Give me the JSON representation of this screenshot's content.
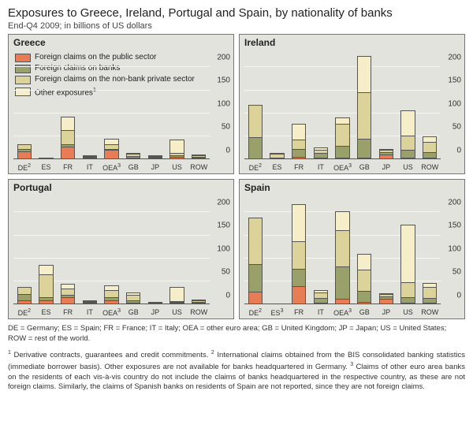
{
  "title": "Exposures to Greece, Ireland, Portugal and Spain, by nationality of banks",
  "subtitle": "End-Q4 2009; in billions of US dollars",
  "colors": {
    "public": "#e77c55",
    "banks": "#9aa06a",
    "nonbank": "#dcd39a",
    "other": "#f5eec9",
    "grid_bg": "#e3e3dd",
    "grid_line": "#f5f5f1",
    "border": "#777777"
  },
  "legend": [
    {
      "key": "public",
      "label": "Foreign claims on the public sector"
    },
    {
      "key": "banks",
      "label": "Foreign claims on banks"
    },
    {
      "key": "nonbank",
      "label": "Foreign claims on the non-bank private sector"
    },
    {
      "key": "other",
      "label": "Other exposures"
    }
  ],
  "legend_other_sup": "1",
  "axis": {
    "ymax": 240,
    "yticks": [
      0,
      50,
      100,
      150,
      200
    ],
    "tick_fontsize": 10
  },
  "categories": [
    "DE",
    "ES",
    "FR",
    "IT",
    "OEA",
    "GB",
    "JP",
    "US",
    "ROW"
  ],
  "category_sup": {
    "DE": "2",
    "OEA": "3",
    "ES_spain": "3"
  },
  "panels": [
    {
      "name": "Greece",
      "show_legend": true,
      "data": [
        {
          "public": 18,
          "banks": 5,
          "nonbank": 10,
          "other": 0
        },
        {
          "public": 1,
          "banks": 0,
          "nonbank": 0,
          "other": 0
        },
        {
          "public": 28,
          "banks": 5,
          "nonbank": 30,
          "other": 30
        },
        {
          "public": 3,
          "banks": 1,
          "nonbank": 2,
          "other": 2
        },
        {
          "public": 20,
          "banks": 3,
          "nonbank": 10,
          "other": 12
        },
        {
          "public": 3,
          "banks": 3,
          "nonbank": 5,
          "other": 3
        },
        {
          "public": 4,
          "banks": 1,
          "nonbank": 1,
          "other": 1
        },
        {
          "public": 5,
          "banks": 3,
          "nonbank": 5,
          "other": 30
        },
        {
          "public": 2,
          "banks": 1,
          "nonbank": 3,
          "other": 1
        }
      ]
    },
    {
      "name": "Ireland",
      "show_legend": false,
      "data": [
        {
          "public": 0,
          "banks": 48,
          "nonbank": 70,
          "other": 0
        },
        {
          "public": 0,
          "banks": 3,
          "nonbank": 8,
          "other": 3
        },
        {
          "public": 5,
          "banks": 18,
          "nonbank": 20,
          "other": 35
        },
        {
          "public": 2,
          "banks": 10,
          "nonbank": 8,
          "other": 5
        },
        {
          "public": 3,
          "banks": 25,
          "nonbank": 48,
          "other": 15
        },
        {
          "public": 3,
          "banks": 42,
          "nonbank": 100,
          "other": 80
        },
        {
          "public": 10,
          "banks": 5,
          "nonbank": 5,
          "other": 2
        },
        {
          "public": 2,
          "banks": 18,
          "nonbank": 30,
          "other": 55
        },
        {
          "public": 2,
          "banks": 12,
          "nonbank": 22,
          "other": 12
        }
      ]
    },
    {
      "name": "Portugal",
      "show_legend": false,
      "data": [
        {
          "public": 8,
          "banks": 15,
          "nonbank": 15,
          "other": 0
        },
        {
          "public": 8,
          "banks": 8,
          "nonbank": 50,
          "other": 20
        },
        {
          "public": 15,
          "banks": 5,
          "nonbank": 15,
          "other": 10
        },
        {
          "public": 3,
          "banks": 2,
          "nonbank": 2,
          "other": 1
        },
        {
          "public": 8,
          "banks": 8,
          "nonbank": 15,
          "other": 10
        },
        {
          "public": 2,
          "banks": 5,
          "nonbank": 12,
          "other": 5
        },
        {
          "public": 2,
          "banks": 1,
          "nonbank": 0,
          "other": 0
        },
        {
          "public": 1,
          "banks": 1,
          "nonbank": 2,
          "other": 30
        },
        {
          "public": 1,
          "banks": 2,
          "nonbank": 3,
          "other": 1
        }
      ]
    },
    {
      "name": "Spain",
      "show_legend": false,
      "es_has_sup": true,
      "data": [
        {
          "public": 28,
          "banks": 60,
          "nonbank": 100,
          "other": 0
        },
        {
          "public": 0,
          "banks": 0,
          "nonbank": 0,
          "other": 0
        },
        {
          "public": 40,
          "banks": 38,
          "nonbank": 60,
          "other": 80
        },
        {
          "public": 2,
          "banks": 10,
          "nonbank": 12,
          "other": 5
        },
        {
          "public": 12,
          "banks": 70,
          "nonbank": 80,
          "other": 40
        },
        {
          "public": 5,
          "banks": 25,
          "nonbank": 45,
          "other": 35
        },
        {
          "public": 12,
          "banks": 5,
          "nonbank": 5,
          "other": 2
        },
        {
          "public": 3,
          "banks": 12,
          "nonbank": 32,
          "other": 125
        },
        {
          "public": 2,
          "banks": 10,
          "nonbank": 25,
          "other": 8
        }
      ]
    }
  ],
  "notes": "DE = Germany; ES = Spain; FR = France; IT = Italy; OEA = other euro area; GB = United Kingdom; JP = Japan; US = United States; ROW = rest of the world.",
  "footnotes_parts": {
    "f1_sup": "1",
    "f1": " Derivative contracts, guarantees and credit commitments.   ",
    "f2_sup": "2",
    "f2": " International claims obtained from the BIS consolidated banking statistics (immediate borrower basis). Other exposures are not available for banks headquartered in Germany.   ",
    "f3_sup": "3",
    "f3": " Claims of other euro area banks on the residents of each vis-à-vis country do not include the claims of banks headquartered in the respective country, as these are not foreign claims. Similarly, the claims of Spanish banks on residents of Spain are not reported, since they are not foreign claims."
  }
}
